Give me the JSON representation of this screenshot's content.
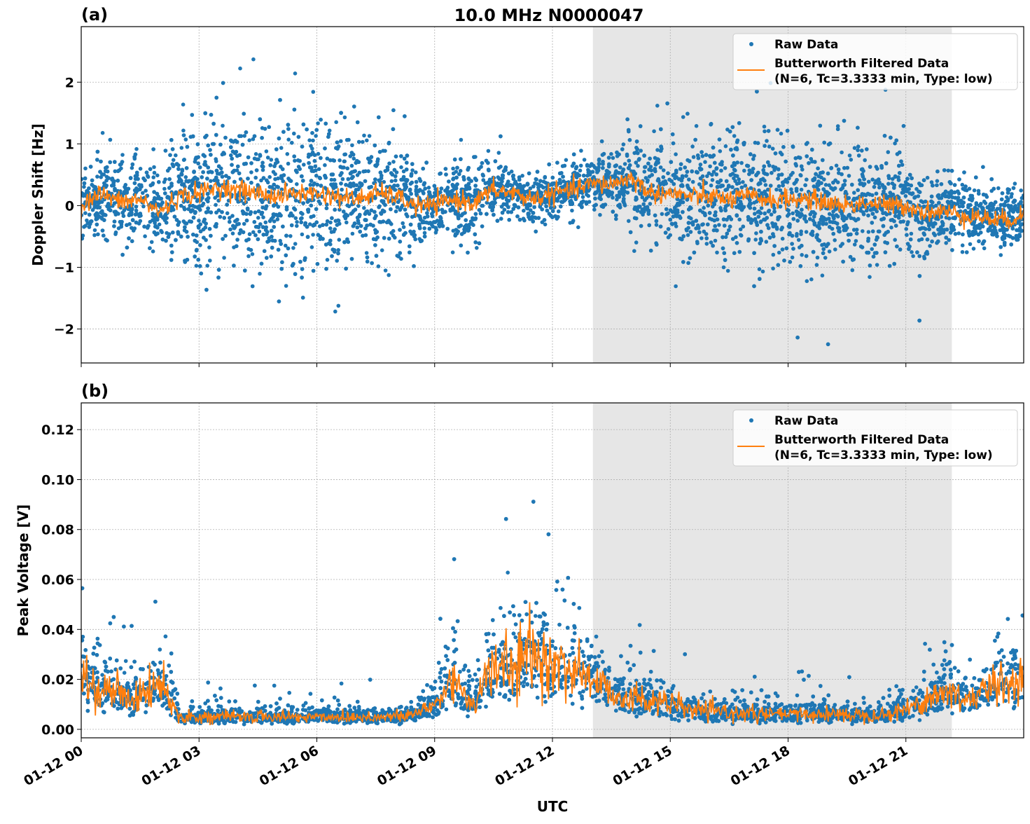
{
  "title": "10.0 MHz N0000047",
  "chart_data": [
    {
      "type": "scatter",
      "panel_label": "(a)",
      "ylabel": "Doppler Shift [Hz]",
      "xlabel": "",
      "xlim": [
        "01-12 00:00",
        "01-13 00:00"
      ],
      "ylim": [
        -2.55,
        2.9
      ],
      "grid": true,
      "legend_placement": "top-right",
      "yticks": [
        -2,
        -1,
        0,
        1,
        2
      ],
      "ytick_labels": [
        "−2",
        "−1",
        "0",
        "1",
        "2"
      ],
      "shaded_region_utc_hours": [
        13.03,
        22.17
      ],
      "series": [
        {
          "name": "Raw Data",
          "kind": "points",
          "color": "#1f77b4",
          "hours": [
            0,
            1,
            2,
            3,
            4,
            5,
            6,
            7,
            8,
            9,
            10,
            11,
            12,
            13,
            14,
            15,
            16,
            17,
            18,
            19,
            20,
            21,
            22,
            23,
            24
          ],
          "typical_spread_hz": [
            0.5,
            0.6,
            0.6,
            1.1,
            1.1,
            1.1,
            1.1,
            1.0,
            0.9,
            0.4,
            0.6,
            0.35,
            0.35,
            0.4,
            0.6,
            0.8,
            0.9,
            0.9,
            0.9,
            0.9,
            0.9,
            0.7,
            0.5,
            0.45,
            0.45
          ]
        },
        {
          "name": "Butterworth Filtered Data\n(N=6, Tc=3.3333 min, Type: low)",
          "kind": "line",
          "color": "#ff7f0e",
          "hours_step": 0.5,
          "values": [
            0.0,
            0.2,
            0.05,
            0.1,
            -0.1,
            0.15,
            0.2,
            0.3,
            0.25,
            0.2,
            0.15,
            0.2,
            0.2,
            0.15,
            0.1,
            0.2,
            0.15,
            0.0,
            0.0,
            0.1,
            0.05,
            0.25,
            0.2,
            0.1,
            0.2,
            0.25,
            0.35,
            0.35,
            0.45,
            0.2,
            0.2,
            0.15,
            0.15,
            0.1,
            0.15,
            0.1,
            0.1,
            0.1,
            0.05,
            0.0,
            0.05,
            0.0,
            0.0,
            -0.1,
            -0.1,
            -0.15,
            -0.2,
            -0.25,
            -0.15
          ]
        }
      ]
    },
    {
      "type": "scatter",
      "panel_label": "(b)",
      "ylabel": "Peak Voltage [V]",
      "xlabel": "UTC",
      "xlim": [
        "01-12 00:00",
        "01-13 00:00"
      ],
      "ylim": [
        -0.0034,
        0.1307
      ],
      "grid": true,
      "legend_placement": "top-right",
      "yticks": [
        0,
        0.02,
        0.04,
        0.06,
        0.08,
        0.1,
        0.12
      ],
      "ytick_labels": [
        "0.00",
        "0.02",
        "0.04",
        "0.06",
        "0.08",
        "0.10",
        "0.12"
      ],
      "xticks_hours": [
        0,
        3,
        6,
        9,
        12,
        15,
        18,
        21
      ],
      "xtick_labels": [
        "01-12 00",
        "01-12 03",
        "01-12 06",
        "01-12 09",
        "01-12 12",
        "01-12 15",
        "01-12 18",
        "01-12 21"
      ],
      "shaded_region_utc_hours": [
        13.03,
        22.17
      ],
      "series": [
        {
          "name": "Raw Data",
          "kind": "points",
          "color": "#1f77b4"
        },
        {
          "name": "Butterworth Filtered Data\n(N=6, Tc=3.3333 min, Type: low)",
          "kind": "line",
          "color": "#ff7f0e",
          "hours_step": 0.5,
          "values": [
            0.02,
            0.015,
            0.015,
            0.012,
            0.02,
            0.005,
            0.005,
            0.005,
            0.005,
            0.005,
            0.005,
            0.005,
            0.005,
            0.005,
            0.005,
            0.005,
            0.005,
            0.006,
            0.01,
            0.02,
            0.01,
            0.025,
            0.025,
            0.03,
            0.025,
            0.025,
            0.02,
            0.015,
            0.012,
            0.012,
            0.01,
            0.008,
            0.007,
            0.007,
            0.006,
            0.006,
            0.006,
            0.006,
            0.006,
            0.006,
            0.006,
            0.006,
            0.008,
            0.012,
            0.015,
            0.012,
            0.015,
            0.02,
            0.02
          ]
        }
      ]
    }
  ],
  "legend": {
    "raw_label": "Raw Data",
    "filtered_line1": "Butterworth Filtered Data",
    "filtered_line2": "(N=6, Tc=3.3333 min, Type: low)"
  }
}
